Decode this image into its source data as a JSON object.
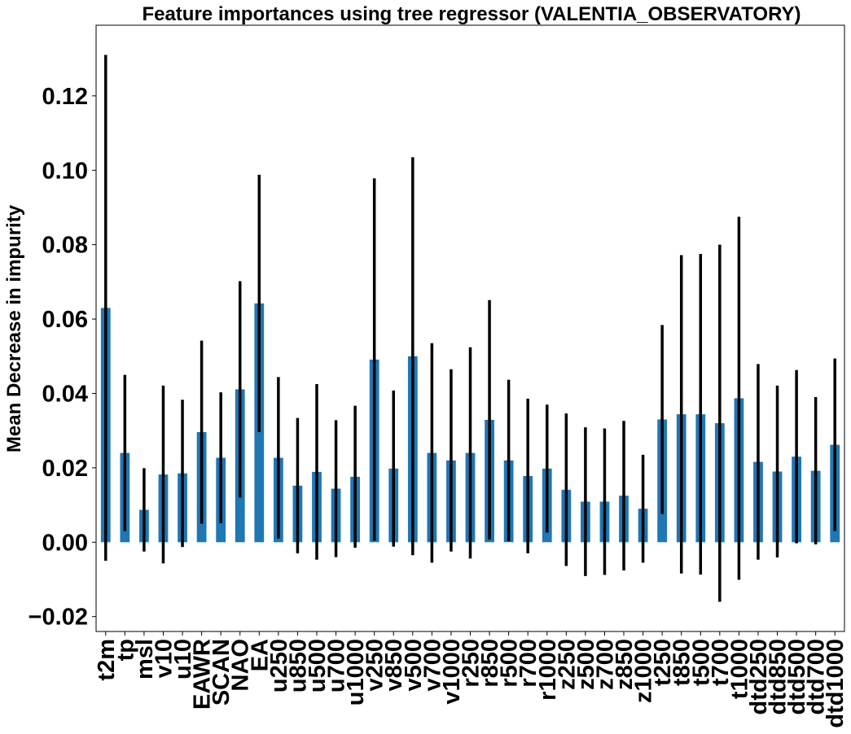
{
  "chart_data": {
    "type": "bar",
    "title": "Feature importances using tree regressor (VALENTIA_OBSERVATORY)",
    "xlabel": "",
    "ylabel": "Mean Decrease in impurity",
    "ylim": [
      -0.024,
      0.139
    ],
    "yticks": [
      -0.02,
      0.0,
      0.02,
      0.04,
      0.06,
      0.08,
      0.1,
      0.12
    ],
    "ytick_labels": [
      "−0.02",
      "0.00",
      "0.02",
      "0.04",
      "0.06",
      "0.08",
      "0.10",
      "0.12"
    ],
    "grid": false,
    "bar_color": "#1f77b4",
    "error_color": "#000000",
    "categories": [
      "t2m",
      "tp",
      "msl",
      "v10",
      "u10",
      "EAWR",
      "SCAN",
      "NAO",
      "EA",
      "u250",
      "u850",
      "u500",
      "u700",
      "u1000",
      "v250",
      "v850",
      "v500",
      "v700",
      "v1000",
      "r250",
      "r850",
      "r500",
      "r700",
      "r1000",
      "z250",
      "z500",
      "z700",
      "z850",
      "z1000",
      "t250",
      "t850",
      "t500",
      "t700",
      "t1000",
      "dtd250",
      "dtd850",
      "dtd500",
      "dtd700",
      "dtd1000"
    ],
    "values": [
      0.063,
      0.024,
      0.0087,
      0.0182,
      0.0185,
      0.0296,
      0.0227,
      0.0411,
      0.0642,
      0.0227,
      0.0152,
      0.0189,
      0.0144,
      0.0176,
      0.0491,
      0.0198,
      0.05,
      0.024,
      0.022,
      0.024,
      0.0329,
      0.022,
      0.0178,
      0.0198,
      0.0141,
      0.0109,
      0.0109,
      0.0125,
      0.009,
      0.033,
      0.0344,
      0.0344,
      0.032,
      0.0387,
      0.0216,
      0.019,
      0.023,
      0.0192,
      0.0262
    ],
    "errors": [
      0.068,
      0.021,
      0.0112,
      0.0239,
      0.0198,
      0.0246,
      0.0176,
      0.0291,
      0.0346,
      0.0217,
      0.0182,
      0.0236,
      0.0184,
      0.0191,
      0.0487,
      0.021,
      0.0535,
      0.0295,
      0.0245,
      0.0284,
      0.0322,
      0.0217,
      0.0208,
      0.0172,
      0.0205,
      0.02,
      0.0197,
      0.0201,
      0.0145,
      0.0254,
      0.0428,
      0.0431,
      0.048,
      0.0488,
      0.0263,
      0.0231,
      0.0233,
      0.0198,
      0.0232
    ]
  }
}
